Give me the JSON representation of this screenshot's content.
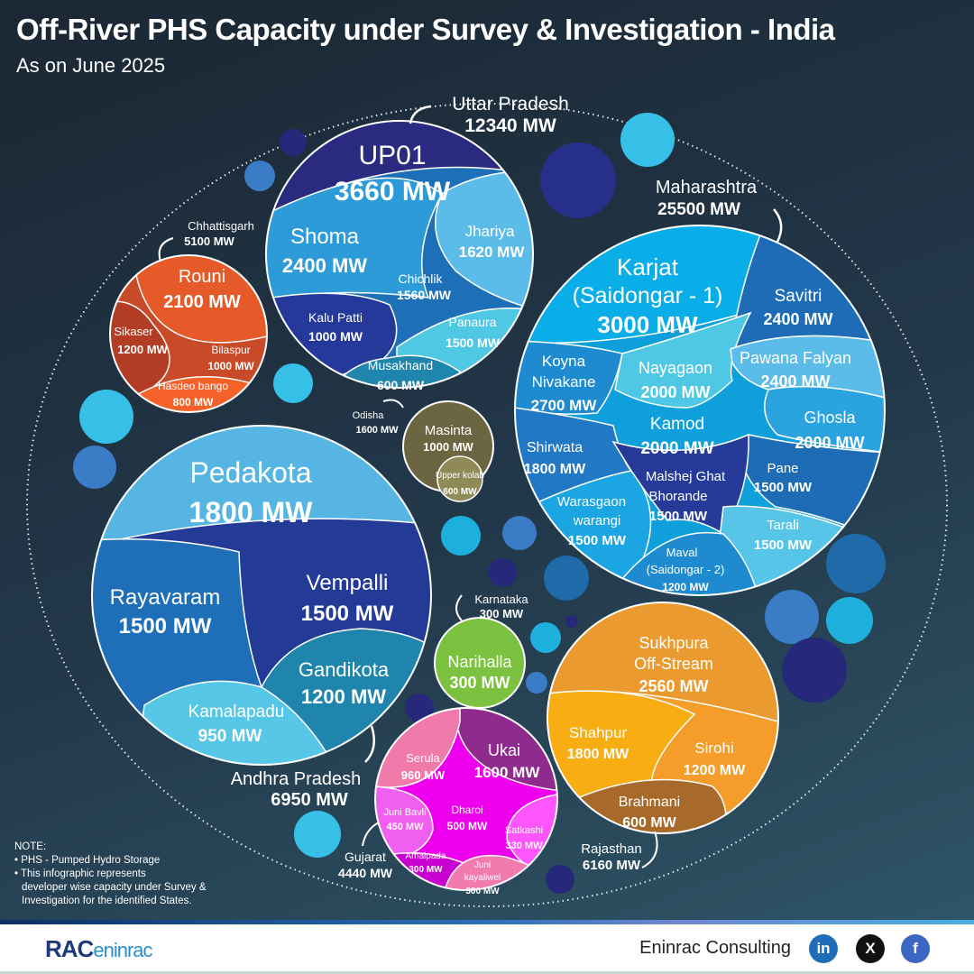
{
  "header": {
    "title": "Off-River PHS Capacity under Survey & Investigation - India",
    "subtitle": "As on June 2025"
  },
  "states": {
    "up": {
      "name": "Uttar Pradesh",
      "total": "12340 MW",
      "devs": [
        {
          "name": "UP01",
          "cap": "3660 MW",
          "color": "#2a2a80"
        },
        {
          "name": "Shoma",
          "cap": "2400 MW",
          "color": "#2d9bd8"
        },
        {
          "name": "Jhariya",
          "cap": "1620 MW",
          "color": "#5bbbe9"
        },
        {
          "name": "Chichlik",
          "cap": "1560 MW",
          "color": "#1d6fb8"
        },
        {
          "name": "Kalu Patti",
          "cap": "1000 MW",
          "color": "#25399b"
        },
        {
          "name": "Panaura",
          "cap": "1500 MW",
          "color": "#4fc8e4"
        },
        {
          "name": "Musakhand",
          "cap": "600 MW",
          "color": "#1f85ad"
        }
      ]
    },
    "cg": {
      "name": "Chhattisgarh",
      "total": "5100 MW",
      "devs": [
        {
          "name": "Rouni",
          "cap": "2100 MW",
          "color": "#e55a28"
        },
        {
          "name": "Sikaser",
          "cap": "1200 MW",
          "color": "#b33d24"
        },
        {
          "name": "Bilaspur",
          "cap": "1000 MW",
          "color": "#c94a28"
        },
        {
          "name": "Hasdeo bango",
          "cap": "800 MW",
          "color": "#f4622a"
        }
      ]
    },
    "od": {
      "name": "Odisha",
      "total": "1600 MW",
      "devs": [
        {
          "name": "Masinta",
          "cap": "1000 MW",
          "color": "#6b6641"
        },
        {
          "name": "Upper kolab",
          "cap": "600 MW",
          "color": "#8f8a58"
        }
      ]
    },
    "ap": {
      "name": "Andhra Pradesh",
      "total": "6950 MW",
      "devs": [
        {
          "name": "Pedakota",
          "cap": "1800 MW",
          "color": "#56b5e3"
        },
        {
          "name": "Rayavaram",
          "cap": "1500 MW",
          "color": "#1e6fb7"
        },
        {
          "name": "Vempalli",
          "cap": "1500 MW",
          "color": "#243a97"
        },
        {
          "name": "Gandikota",
          "cap": "1200 MW",
          "color": "#1f85ad"
        },
        {
          "name": "Kamalapadu",
          "cap": "950 MW",
          "color": "#57c7e7"
        }
      ]
    },
    "ka": {
      "name": "Karnataka",
      "total": "300 MW",
      "devs": [
        {
          "name": "Narihalla",
          "cap": "300 MW",
          "color": "#7cc13f"
        }
      ]
    },
    "gj": {
      "name": "Gujarat",
      "total": "4440 MW",
      "devs": [
        {
          "name": "Serula",
          "cap": "960 MW",
          "color": "#f07aaa"
        },
        {
          "name": "Ukai",
          "cap": "1600 MW",
          "color": "#8f2b8d"
        },
        {
          "name": "Juni Bavli",
          "cap": "450 MW",
          "color": "#f15ff0"
        },
        {
          "name": "Dharoi",
          "cap": "500 MW",
          "color": "#ee00ee"
        },
        {
          "name": "Satkashi",
          "cap": "330 MW",
          "color": "#ff55ff"
        },
        {
          "name": "Amalpada",
          "cap": "300 MW",
          "color": "#c800d0"
        },
        {
          "name": [
            "Juni",
            "kayaliwel"
          ],
          "cap": "300 MW",
          "color": "#f17aae"
        }
      ]
    },
    "mh": {
      "name": "Maharashtra",
      "total": "25500 MW",
      "devs": [
        {
          "name": [
            "Karjat",
            "(Saidongar - 1)"
          ],
          "cap": "3000 MW",
          "color": "#09aee8"
        },
        {
          "name": "Savitri",
          "cap": "2400 MW",
          "color": "#1e6cb5"
        },
        {
          "name": [
            "Koyna",
            "Nivakane"
          ],
          "cap": "2700 MW",
          "color": "#1e8bd0"
        },
        {
          "name": "Nayagaon",
          "cap": "2000 MW",
          "color": "#4fc8e6"
        },
        {
          "name": "Pawana Falyan",
          "cap": "2400 MW",
          "color": "#5bbbe9"
        },
        {
          "name": "Ghosla",
          "cap": "2000 MW",
          "color": "#2aa3df"
        },
        {
          "name": "Kamod",
          "cap": "2000 MW",
          "color": "#0fa0dc"
        },
        {
          "name": "Shirwata",
          "cap": "1800 MW",
          "color": "#2178c4"
        },
        {
          "name": "Pane",
          "cap": "1500 MW",
          "color": "#1e6cb5"
        },
        {
          "name": [
            "Malshej Ghat",
            "Bhorande"
          ],
          "cap": "1500 MW",
          "color": "#263a9a"
        },
        {
          "name": [
            "Warasgaon",
            "warangi"
          ],
          "cap": "1500 MW",
          "color": "#1ba5e3"
        },
        {
          "name": "Tarali",
          "cap": "1500 MW",
          "color": "#57c5e8"
        },
        {
          "name": [
            "Maval",
            "(Saidongar - 2)"
          ],
          "cap": "1200 MW",
          "color": "#1e8bd0"
        }
      ]
    },
    "rj": {
      "name": "Rajasthan",
      "total": "6160 MW",
      "devs": [
        {
          "name": [
            "Sukhpura",
            "Off-Stream"
          ],
          "cap": "2560 MW",
          "color": "#eb9a2f"
        },
        {
          "name": "Shahpur",
          "cap": "1800 MW",
          "color": "#f8ad12"
        },
        {
          "name": "Sirohi",
          "cap": "1200 MW",
          "color": "#f59d2a"
        },
        {
          "name": "Brahmani",
          "cap": "600 MW",
          "color": "#a86a2a"
        }
      ]
    }
  },
  "notes": {
    "heading": "NOTE:",
    "items": [
      "• PHS - Pumped Hydro Storage",
      "• This infographic represents",
      "developer wise capacity under Survey &",
      "Investigation for the identified States."
    ]
  },
  "footer": {
    "logo": "RAC",
    "logo_suffix": "eninrac",
    "brand": "Eninrac Consulting",
    "social": [
      "in",
      "X",
      "f"
    ]
  }
}
